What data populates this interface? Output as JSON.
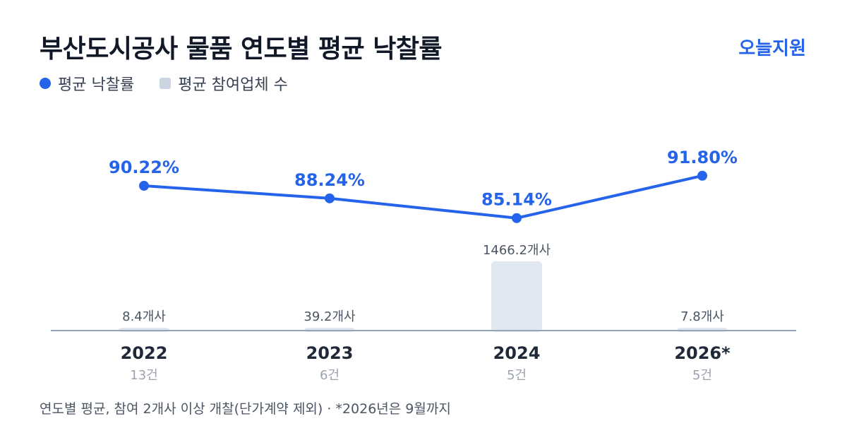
{
  "header": {
    "title": "부산도시공사 물품 연도별 평균 낙찰률",
    "brand": "오늘지원"
  },
  "legend": {
    "rate_label": "평균 낙찰률",
    "bidders_label": "평균 참여업체 수"
  },
  "colors": {
    "line": "#2563eb",
    "bar": "#e2e8f0",
    "baseline": "#94a3b8",
    "bar_label": "#4b5563",
    "year": "#1f2937",
    "count": "#9ca3af"
  },
  "chart_data": {
    "type": "bar",
    "categories": [
      "2022",
      "2023",
      "2024",
      "2026*"
    ],
    "counts": [
      "13건",
      "6건",
      "5건",
      "5건"
    ],
    "series": [
      {
        "name": "평균 낙찰률",
        "type": "line",
        "values": [
          90.22,
          88.24,
          85.14,
          91.8
        ],
        "labels": [
          "90.22%",
          "88.24%",
          "85.14%",
          "91.80%"
        ]
      },
      {
        "name": "평균 참여업체 수",
        "type": "bar",
        "values": [
          8.4,
          39.2,
          1466.2,
          7.8
        ],
        "labels": [
          "8.4개사",
          "39.2개사",
          "1466.2개사",
          "7.8개사"
        ]
      }
    ],
    "line_ylim": [
      70,
      100
    ],
    "bar_ylim": [
      0,
      1466.2
    ],
    "legend_position": "top-left",
    "grid": false
  },
  "footer": {
    "note": "연도별 평균, 참여 2개사 이상 개찰(단가계약 제외) · *2026년은 9월까지"
  }
}
